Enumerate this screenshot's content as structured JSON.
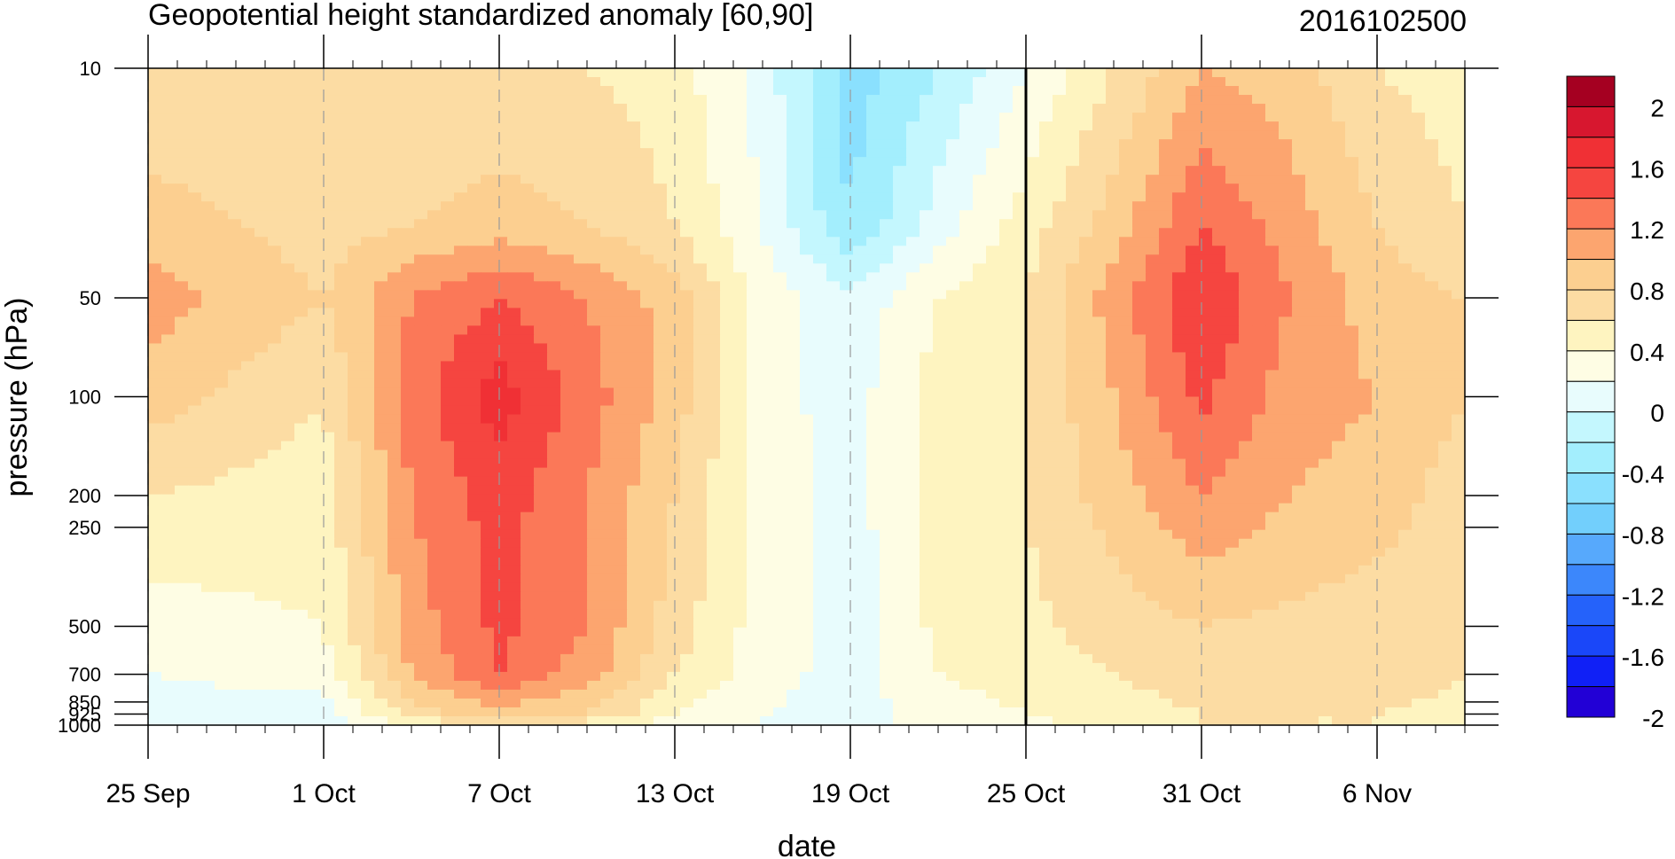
{
  "chart_data": {
    "type": "heatmap",
    "title": "Geopotential height standardized anomaly [60,90]",
    "date_label": "2016102500",
    "xlabel": "date",
    "ylabel": "pressure (hPa)",
    "x_ticks": [
      "25 Sep",
      "1 Oct",
      "7 Oct",
      "13 Oct",
      "19 Oct",
      "25 Oct",
      "31 Oct",
      "6 Nov"
    ],
    "x_range": [
      "25 Sep",
      "9 Nov"
    ],
    "current_date": "25 Oct",
    "y_ticks": [
      10,
      50,
      100,
      200,
      250,
      500,
      700,
      850,
      925,
      1000
    ],
    "y_scale": "log",
    "y_range": [
      1000,
      10
    ],
    "colorbar": {
      "labels": [
        "2",
        "1.6",
        "1.2",
        "0.8",
        "0.4",
        "0",
        "-0.4",
        "-0.8",
        "-1.2",
        "-1.6",
        "-2"
      ],
      "levels": [
        2.2,
        2.0,
        1.8,
        1.6,
        1.4,
        1.2,
        1.0,
        0.8,
        0.6,
        0.4,
        0.2,
        0.0,
        -0.2,
        -0.4,
        -0.6,
        -0.8,
        -1.0,
        -1.2,
        -1.4,
        -1.6,
        -1.8,
        -2.0,
        -2.2
      ],
      "colors": [
        "#a50021",
        "#d7172f",
        "#f03035",
        "#f54540",
        "#fb7858",
        "#fca56f",
        "#fccf90",
        "#fcdca3",
        "#fef4c0",
        "#fefde4",
        "#e8fcfd",
        "#c4f7fe",
        "#a3eefd",
        "#8ae0fe",
        "#72cffc",
        "#57a9fc",
        "#3c87fb",
        "#2562fa",
        "#1a47f9",
        "#1020f6",
        "#2200d6"
      ]
    },
    "anomaly_grid": {
      "dates": [
        "25 Sep",
        "1 Oct",
        "4 Oct",
        "7 Oct",
        "10 Oct",
        "13 Oct",
        "16 Oct",
        "19 Oct",
        "22 Oct",
        "25 Oct",
        "28 Oct",
        "31 Oct",
        "3 Nov",
        "6 Nov",
        "9 Nov"
      ],
      "pressure_levels": [
        10,
        30,
        50,
        100,
        200,
        500,
        700,
        925,
        1000
      ],
      "rows": [
        [
          0.6,
          0.7,
          0.6,
          0.6,
          0.6,
          0.5,
          0.1,
          -0.5,
          -0.2,
          0.2,
          0.6,
          1.0,
          0.9,
          0.6,
          0.5
        ],
        [
          0.9,
          0.7,
          0.8,
          0.9,
          0.8,
          0.6,
          0.2,
          -0.4,
          0.1,
          0.5,
          0.9,
          1.4,
          1.1,
          0.8,
          0.6
        ],
        [
          1.1,
          0.8,
          1.2,
          1.4,
          1.2,
          0.9,
          0.3,
          0.05,
          0.4,
          0.6,
          1.1,
          1.6,
          1.2,
          0.9,
          0.8
        ],
        [
          0.9,
          0.6,
          1.3,
          1.7,
          1.3,
          0.9,
          0.3,
          0.1,
          0.5,
          0.6,
          1.0,
          1.45,
          1.1,
          1.0,
          0.8
        ],
        [
          0.6,
          0.5,
          1.2,
          1.5,
          1.2,
          0.8,
          0.3,
          0.1,
          0.5,
          0.6,
          0.9,
          1.2,
          1.0,
          0.9,
          0.7
        ],
        [
          0.3,
          0.4,
          1.1,
          1.45,
          1.2,
          0.7,
          0.3,
          0.1,
          0.45,
          0.55,
          0.7,
          0.8,
          0.75,
          0.7,
          0.65
        ],
        [
          0.2,
          0.3,
          1.0,
          1.4,
          1.1,
          0.6,
          0.3,
          0.1,
          0.4,
          0.5,
          0.6,
          0.7,
          0.7,
          0.8,
          0.6
        ],
        [
          0.1,
          0.1,
          0.7,
          0.9,
          0.8,
          0.4,
          0.2,
          0.1,
          0.3,
          0.4,
          0.5,
          0.6,
          0.6,
          0.6,
          0.5
        ],
        [
          0.0,
          0.0,
          0.4,
          0.6,
          0.5,
          0.3,
          0.2,
          0.1,
          0.3,
          0.3,
          0.5,
          0.6,
          0.6,
          0.6,
          0.5
        ]
      ]
    },
    "grid": "vertical dashed lines at date ticks",
    "legend": "right colorbar"
  }
}
